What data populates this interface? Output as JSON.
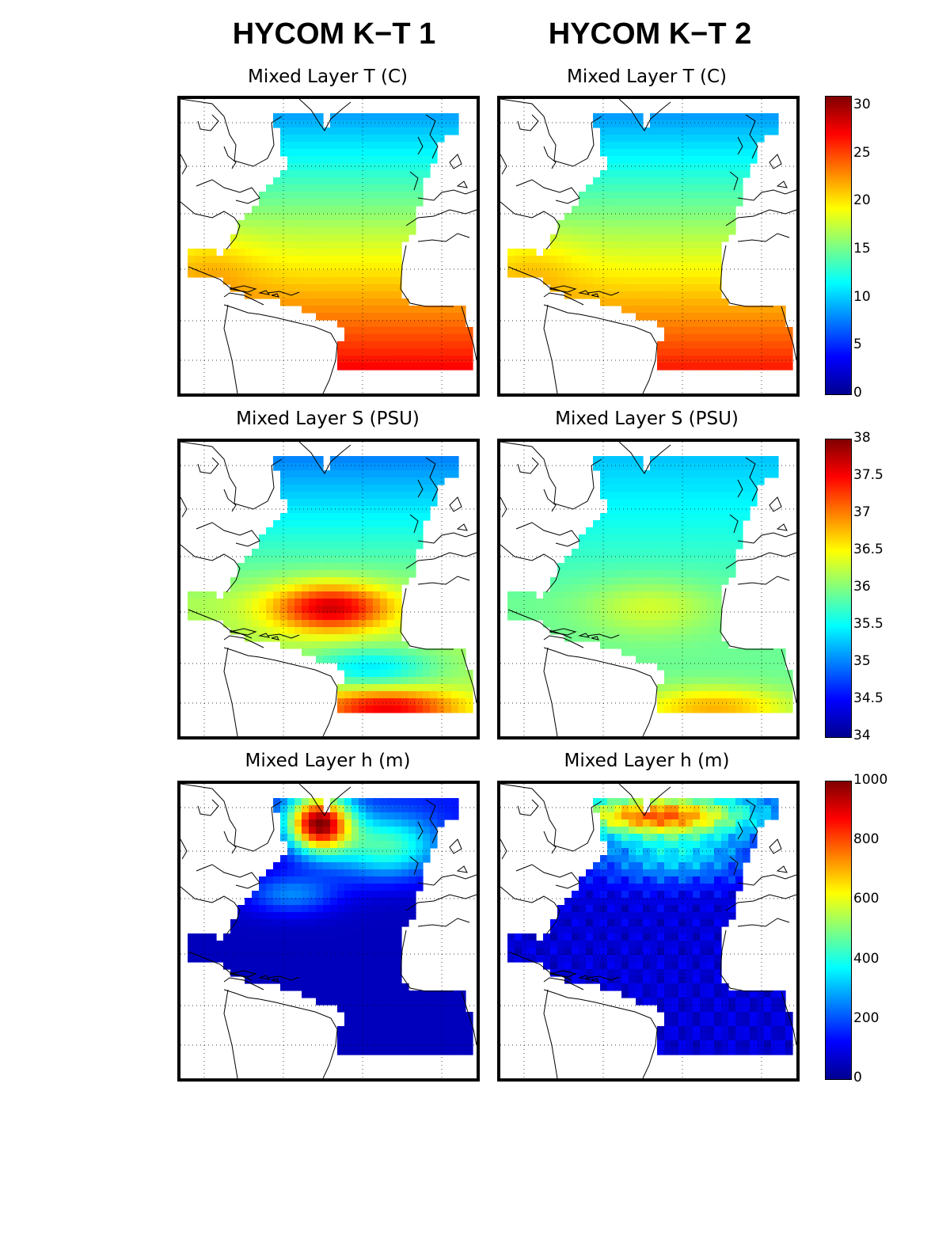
{
  "columns": [
    {
      "title": "HYCOM K−T 1"
    },
    {
      "title": "HYCOM K−T 2"
    }
  ],
  "rows": [
    {
      "panel_title": "Mixed Layer T (C)",
      "variable": "T",
      "unit": "C",
      "colorbar": {
        "min": 0,
        "max": 31,
        "ticks": [
          "30",
          "25",
          "20",
          "15",
          "10",
          "5",
          "0"
        ]
      }
    },
    {
      "panel_title": "Mixed Layer S (PSU)",
      "variable": "S",
      "unit": "PSU",
      "colorbar": {
        "min": 34,
        "max": 38,
        "ticks": [
          "38",
          "37.5",
          "37",
          "36.5",
          "36",
          "35.5",
          "35",
          "34.5",
          "34"
        ]
      }
    },
    {
      "panel_title": "Mixed Layer h (m)",
      "variable": "h",
      "unit": "m",
      "colorbar": {
        "min": 0,
        "max": 1000,
        "ticks": [
          "1000",
          "800",
          "600",
          "400",
          "200",
          "0"
        ]
      }
    }
  ],
  "colormap": "jet",
  "colormap_colors": [
    "#00008f",
    "#0000ff",
    "#0080ff",
    "#00ffff",
    "#80ff80",
    "#ffff00",
    "#ff8000",
    "#ff0000",
    "#800000"
  ],
  "map": {
    "region": "North Atlantic",
    "gridlines": "dotted",
    "coastlines": true
  }
}
